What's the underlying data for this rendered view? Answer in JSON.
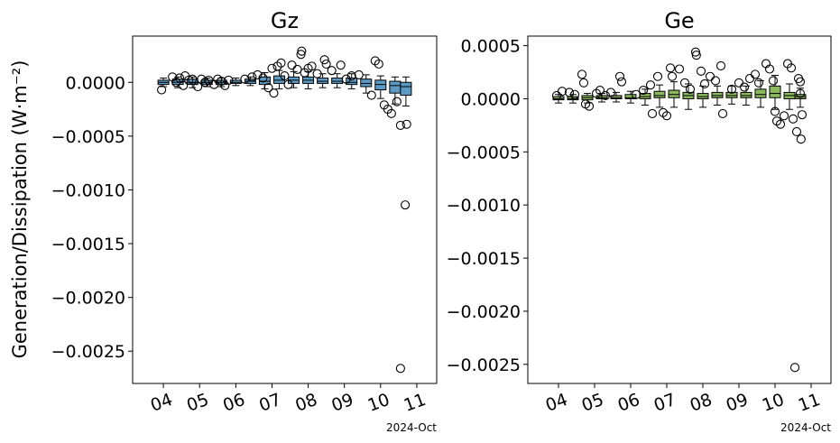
{
  "figure": {
    "ylabel": "Generation/Dissipation (W·m⁻²)",
    "date_note": "2024-Oct"
  },
  "chart_data": [
    {
      "type": "box",
      "title": "Gz",
      "color": "#5b9ac4",
      "ylim": [
        -0.0028,
        0.00043
      ],
      "xlim": [
        3.15,
        11.55
      ],
      "y_ticks": [
        0.0,
        -0.0005,
        -0.001,
        -0.0015,
        -0.002,
        -0.0025
      ],
      "y_tick_labels": [
        "0.0000",
        "−0.0005",
        "−0.0010",
        "−0.0015",
        "−0.0020",
        "−0.0025"
      ],
      "x_ticks": [
        4,
        5,
        6,
        7,
        8,
        9,
        10,
        11
      ],
      "x_tick_labels": [
        "04",
        "05",
        "06",
        "07",
        "08",
        "09",
        "10",
        "11"
      ],
      "date_note": "2024-Oct",
      "boxes": [
        {
          "x": 4.0,
          "q1": -2e-05,
          "q3": 2e-05,
          "med": 0.0,
          "wlo": -4e-05,
          "whi": 4e-05
        },
        {
          "x": 4.4,
          "q1": -2e-05,
          "q3": 3e-05,
          "med": 0.0,
          "wlo": -5e-05,
          "whi": 5e-05
        },
        {
          "x": 4.8,
          "q1": -2e-05,
          "q3": 3e-05,
          "med": 0.0,
          "wlo": -5e-05,
          "whi": 5e-05
        },
        {
          "x": 5.2,
          "q1": -2e-05,
          "q3": 2e-05,
          "med": 0.0,
          "wlo": -4e-05,
          "whi": 4e-05
        },
        {
          "x": 5.6,
          "q1": -2e-05,
          "q3": 2e-05,
          "med": 0.0,
          "wlo": -4e-05,
          "whi": 4e-05
        },
        {
          "x": 6.0,
          "q1": -1e-05,
          "q3": 2e-05,
          "med": 0.0,
          "wlo": -3e-05,
          "whi": 4e-05
        },
        {
          "x": 6.4,
          "q1": -1e-05,
          "q3": 3e-05,
          "med": 1e-05,
          "wlo": -3e-05,
          "whi": 5e-05
        },
        {
          "x": 6.8,
          "q1": -2e-05,
          "q3": 5e-05,
          "med": 1e-05,
          "wlo": -6e-05,
          "whi": 9e-05
        },
        {
          "x": 7.2,
          "q1": -1e-05,
          "q3": 6e-05,
          "med": 2e-05,
          "wlo": -6e-05,
          "whi": 0.00011
        },
        {
          "x": 7.6,
          "q1": -1e-05,
          "q3": 5e-05,
          "med": 2e-05,
          "wlo": -5e-05,
          "whi": 0.0001
        },
        {
          "x": 8.0,
          "q1": -1e-05,
          "q3": 5e-05,
          "med": 2e-05,
          "wlo": -6e-05,
          "whi": 0.0001
        },
        {
          "x": 8.4,
          "q1": -1e-05,
          "q3": 4e-05,
          "med": 1e-05,
          "wlo": -5e-05,
          "whi": 8e-05
        },
        {
          "x": 8.8,
          "q1": -1e-05,
          "q3": 4e-05,
          "med": 1e-05,
          "wlo": -5e-05,
          "whi": 8e-05
        },
        {
          "x": 9.2,
          "q1": -2e-05,
          "q3": 4e-05,
          "med": 0.0,
          "wlo": -6e-05,
          "whi": 8e-05
        },
        {
          "x": 9.6,
          "q1": -4e-05,
          "q3": 3e-05,
          "med": -1e-05,
          "wlo": -0.0001,
          "whi": 7e-05
        },
        {
          "x": 10.0,
          "q1": -7e-05,
          "q3": 2e-05,
          "med": -2e-05,
          "wlo": -0.00015,
          "whi": 6e-05
        },
        {
          "x": 10.4,
          "q1": -0.0001,
          "q3": 1e-05,
          "med": -3e-05,
          "wlo": -0.0002,
          "whi": 5e-05
        },
        {
          "x": 10.7,
          "q1": -0.00012,
          "q3": 0.0,
          "med": -4e-05,
          "wlo": -0.00022,
          "whi": 5e-05
        }
      ],
      "outliers": [
        [
          3.95,
          -7e-05
        ],
        [
          4.25,
          5e-05
        ],
        [
          4.35,
          0.0
        ],
        [
          4.45,
          4e-05
        ],
        [
          4.55,
          -3e-05
        ],
        [
          4.6,
          6e-05
        ],
        [
          4.7,
          2e-05
        ],
        [
          4.8,
          3e-05
        ],
        [
          4.95,
          -4e-05
        ],
        [
          5.05,
          3e-05
        ],
        [
          5.15,
          0.0
        ],
        [
          5.25,
          2e-05
        ],
        [
          5.4,
          -2e-05
        ],
        [
          5.5,
          3e-05
        ],
        [
          5.6,
          1e-05
        ],
        [
          5.7,
          -3e-05
        ],
        [
          5.8,
          2e-05
        ],
        [
          6.25,
          3e-05
        ],
        [
          6.45,
          5e-05
        ],
        [
          6.6,
          7e-05
        ],
        [
          6.75,
          4e-05
        ],
        [
          6.9,
          -5e-05
        ],
        [
          7.0,
          0.00013
        ],
        [
          7.05,
          -0.0001
        ],
        [
          7.15,
          0.00015
        ],
        [
          7.25,
          0.00018
        ],
        [
          7.35,
          6e-05
        ],
        [
          7.45,
          -2e-05
        ],
        [
          7.55,
          0.00016
        ],
        [
          7.7,
          0.00012
        ],
        [
          7.8,
          0.00026
        ],
        [
          7.82,
          0.00029
        ],
        [
          7.9,
          9e-05
        ],
        [
          8.0,
          0.00013
        ],
        [
          8.1,
          0.00015
        ],
        [
          8.25,
          8e-05
        ],
        [
          8.45,
          0.00021
        ],
        [
          8.5,
          0.00017
        ],
        [
          8.65,
          0.00011
        ],
        [
          8.9,
          0.00016
        ],
        [
          9.05,
          3e-05
        ],
        [
          9.2,
          6e-05
        ],
        [
          9.4,
          7e-05
        ],
        [
          9.75,
          -0.00012
        ],
        [
          9.85,
          0.0002
        ],
        [
          9.95,
          0.00017
        ],
        [
          10.1,
          -0.00021
        ],
        [
          10.2,
          -0.00025
        ],
        [
          10.3,
          -0.00029
        ],
        [
          10.45,
          -0.00018
        ],
        [
          10.55,
          -0.0004
        ],
        [
          10.72,
          -0.00039
        ],
        [
          10.68,
          -0.00114
        ],
        [
          10.55,
          -0.00266
        ]
      ]
    },
    {
      "type": "box",
      "title": "Ge",
      "color": "#8ab85c",
      "ylim": [
        -0.00268,
        0.00059
      ],
      "xlim": [
        3.15,
        11.55
      ],
      "y_ticks": [
        0.0005,
        0.0,
        -0.0005,
        -0.001,
        -0.0015,
        -0.002,
        -0.0025
      ],
      "y_tick_labels": [
        "0.0005",
        "0.0000",
        "−0.0005",
        "−0.0010",
        "−0.0015",
        "−0.0020",
        "−0.0025"
      ],
      "x_ticks": [
        4,
        5,
        6,
        7,
        8,
        9,
        10,
        11
      ],
      "x_tick_labels": [
        "04",
        "05",
        "06",
        "07",
        "08",
        "09",
        "10",
        "11"
      ],
      "date_note": "2024-Oct",
      "boxes": [
        {
          "x": 4.0,
          "q1": -1e-05,
          "q3": 2e-05,
          "med": 0.0,
          "wlo": -4e-05,
          "whi": 4e-05
        },
        {
          "x": 4.4,
          "q1": -1e-05,
          "q3": 2e-05,
          "med": 0.0,
          "wlo": -4e-05,
          "whi": 4e-05
        },
        {
          "x": 4.8,
          "q1": -1e-05,
          "q3": 3e-05,
          "med": 1e-05,
          "wlo": -4e-05,
          "whi": 5e-05
        },
        {
          "x": 5.2,
          "q1": 0.0,
          "q3": 3e-05,
          "med": 1e-05,
          "wlo": -3e-05,
          "whi": 5e-05
        },
        {
          "x": 5.6,
          "q1": 0.0,
          "q3": 3e-05,
          "med": 1e-05,
          "wlo": -3e-05,
          "whi": 6e-05
        },
        {
          "x": 6.0,
          "q1": 0.0,
          "q3": 4e-05,
          "med": 1e-05,
          "wlo": -4e-05,
          "whi": 7e-05
        },
        {
          "x": 6.4,
          "q1": 0.0,
          "q3": 5e-05,
          "med": 2e-05,
          "wlo": -6e-05,
          "whi": 9e-05
        },
        {
          "x": 6.8,
          "q1": 1e-05,
          "q3": 7e-05,
          "med": 3e-05,
          "wlo": -8e-05,
          "whi": 0.00013
        },
        {
          "x": 7.2,
          "q1": 1e-05,
          "q3": 8e-05,
          "med": 4e-05,
          "wlo": -8e-05,
          "whi": 0.00016
        },
        {
          "x": 7.6,
          "q1": 0.0,
          "q3": 6e-05,
          "med": 3e-05,
          "wlo": -0.0001,
          "whi": 0.00014
        },
        {
          "x": 8.0,
          "q1": 0.0,
          "q3": 5e-05,
          "med": 2e-05,
          "wlo": -8e-05,
          "whi": 0.00012
        },
        {
          "x": 8.4,
          "q1": 1e-05,
          "q3": 6e-05,
          "med": 3e-05,
          "wlo": -6e-05,
          "whi": 0.00012
        },
        {
          "x": 8.8,
          "q1": 1e-05,
          "q3": 6e-05,
          "med": 3e-05,
          "wlo": -5e-05,
          "whi": 0.00012
        },
        {
          "x": 9.2,
          "q1": 1e-05,
          "q3": 6e-05,
          "med": 3e-05,
          "wlo": -6e-05,
          "whi": 0.00012
        },
        {
          "x": 9.6,
          "q1": 1e-05,
          "q3": 9e-05,
          "med": 4e-05,
          "wlo": -8e-05,
          "whi": 0.00017
        },
        {
          "x": 10.0,
          "q1": 1e-05,
          "q3": 0.00012,
          "med": 5e-05,
          "wlo": -0.0001,
          "whi": 0.00022
        },
        {
          "x": 10.4,
          "q1": 0.0,
          "q3": 6e-05,
          "med": 3e-05,
          "wlo": -0.0001,
          "whi": 0.00014
        },
        {
          "x": 10.7,
          "q1": 0.0,
          "q3": 4e-05,
          "med": 2e-05,
          "wlo": -8e-05,
          "whi": 0.0001
        }
      ],
      "outliers": [
        [
          3.95,
          3e-05
        ],
        [
          4.1,
          7e-05
        ],
        [
          4.3,
          6e-05
        ],
        [
          4.45,
          4e-05
        ],
        [
          4.65,
          0.00023
        ],
        [
          4.7,
          0.00015
        ],
        [
          4.75,
          -5e-05
        ],
        [
          4.85,
          -7e-05
        ],
        [
          5.05,
          5e-05
        ],
        [
          5.15,
          8e-05
        ],
        [
          5.3,
          3e-05
        ],
        [
          5.45,
          6e-05
        ],
        [
          5.7,
          0.00021
        ],
        [
          5.75,
          0.00016
        ],
        [
          6.15,
          4e-05
        ],
        [
          6.35,
          8e-05
        ],
        [
          6.55,
          0.00013
        ],
        [
          6.6,
          -0.00014
        ],
        [
          6.75,
          0.00021
        ],
        [
          6.9,
          -0.00013
        ],
        [
          7.0,
          -0.00016
        ],
        [
          7.1,
          0.00029
        ],
        [
          7.15,
          0.00021
        ],
        [
          7.35,
          0.00028
        ],
        [
          7.5,
          0.00015
        ],
        [
          7.65,
          9e-05
        ],
        [
          7.8,
          0.00044
        ],
        [
          7.82,
          0.00041
        ],
        [
          7.95,
          0.00026
        ],
        [
          8.05,
          0.00014
        ],
        [
          8.2,
          0.00021
        ],
        [
          8.35,
          0.00017
        ],
        [
          8.5,
          0.00031
        ],
        [
          8.55,
          -0.00014
        ],
        [
          8.8,
          9e-05
        ],
        [
          9.0,
          0.00015
        ],
        [
          9.15,
          0.00011
        ],
        [
          9.3,
          0.00019
        ],
        [
          9.45,
          0.00023
        ],
        [
          9.55,
          0.00015
        ],
        [
          9.75,
          0.00033
        ],
        [
          9.85,
          0.00028
        ],
        [
          9.95,
          0.00017
        ],
        [
          10.0,
          -0.00012
        ],
        [
          10.05,
          -0.00021
        ],
        [
          10.15,
          -0.00024
        ],
        [
          10.25,
          -0.00016
        ],
        [
          10.35,
          0.00033
        ],
        [
          10.45,
          0.00029
        ],
        [
          10.5,
          -0.00019
        ],
        [
          10.6,
          -0.00031
        ],
        [
          10.65,
          0.00019
        ],
        [
          10.72,
          -0.00038
        ],
        [
          10.7,
          0.00016
        ],
        [
          10.75,
          -0.00015
        ],
        [
          10.7,
          5e-05
        ],
        [
          10.55,
          -0.00253
        ]
      ]
    }
  ]
}
